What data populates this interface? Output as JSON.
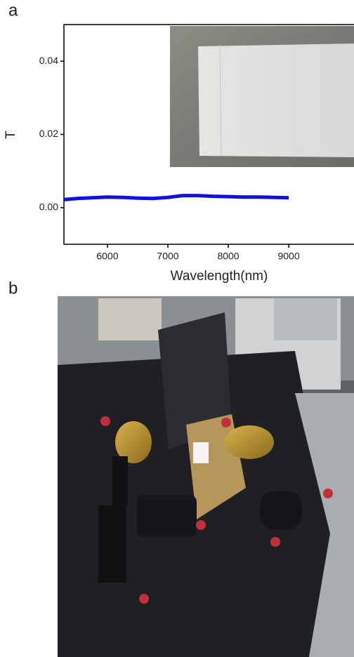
{
  "panel_labels": [
    "a",
    "b"
  ],
  "chart_data": {
    "type": "line",
    "x_label": "Wavelength(nm)",
    "y_label": "T",
    "xlim": [
      5280,
      10080
    ],
    "ylim": [
      -0.01,
      0.05
    ],
    "xticks": [
      6000,
      7000,
      8000,
      9000
    ],
    "yticks": [
      {
        "value": 0,
        "label": "0.00"
      },
      {
        "value": 0.02,
        "label": "0.02"
      },
      {
        "value": 0.04,
        "label": "0.04"
      }
    ],
    "x": [
      5280,
      5500,
      5750,
      6000,
      6250,
      6500,
      6750,
      7000,
      7250,
      7500,
      7750,
      8000,
      8250,
      8500,
      8750,
      9000
    ],
    "series": [
      {
        "name": "T",
        "color": "#1010e0",
        "values": [
          0.0022,
          0.0025,
          0.0027,
          0.0029,
          0.0028,
          0.0026,
          0.0025,
          0.0028,
          0.0033,
          0.0033,
          0.0031,
          0.003,
          0.0029,
          0.0029,
          0.0028,
          0.0027
        ]
      }
    ]
  }
}
